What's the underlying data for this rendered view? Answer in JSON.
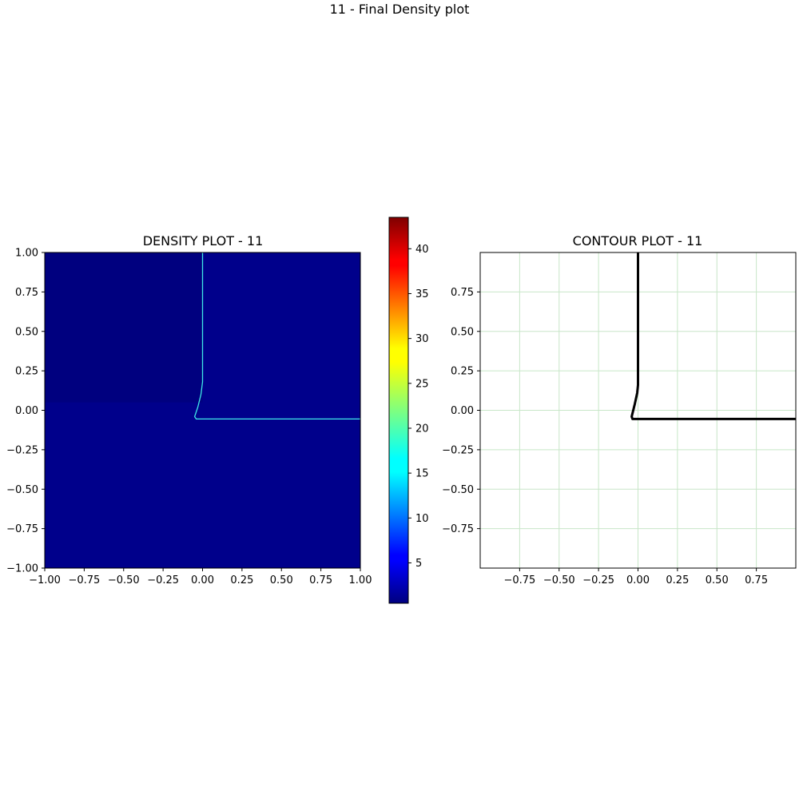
{
  "figure": {
    "suptitle": "11 - Final Density plot"
  },
  "chart_data": [
    {
      "type": "heatmap",
      "title": "DENSITY PLOT - 11",
      "xlabel": "",
      "ylabel": "",
      "xlim": [
        -1.0,
        1.0
      ],
      "ylim": [
        -1.0,
        1.0
      ],
      "xticks": [
        -1.0,
        -0.75,
        -0.5,
        -0.25,
        0.0,
        0.25,
        0.5,
        0.75,
        1.0
      ],
      "xtick_labels": [
        "−1.00",
        "−0.75",
        "−0.50",
        "−0.25",
        "0.00",
        "0.25",
        "0.50",
        "0.75",
        "1.00"
      ],
      "yticks": [
        -1.0,
        -0.75,
        -0.5,
        -0.25,
        0.0,
        0.25,
        0.5,
        0.75,
        1.0
      ],
      "ytick_labels": [
        "−1.00",
        "−0.75",
        "−0.50",
        "−0.25",
        "0.00",
        "0.25",
        "0.50",
        "0.75",
        "1.00"
      ],
      "grid": false,
      "colormap": "jet",
      "background_color": "#00008b",
      "upper_left_region_color": "#00007f",
      "interface_color": "#3fe8e8",
      "interface_line": {
        "x": [
          0.0,
          0.0,
          -0.01,
          -0.03,
          -0.05,
          -0.04,
          1.0
        ],
        "y": [
          1.0,
          0.18,
          0.1,
          0.02,
          -0.04,
          -0.055,
          -0.055
        ]
      },
      "colorbar": {
        "range": [
          0.5,
          43.5
        ],
        "ticks": [
          5,
          10,
          15,
          20,
          25,
          30,
          35,
          40
        ],
        "tick_labels": [
          "5",
          "10",
          "15",
          "20",
          "25",
          "30",
          "35",
          "40"
        ]
      }
    },
    {
      "type": "line",
      "title": "CONTOUR PLOT - 11",
      "xlabel": "",
      "ylabel": "",
      "xlim": [
        -1.0,
        1.0
      ],
      "ylim": [
        -1.0,
        1.0
      ],
      "xticks": [
        -0.75,
        -0.5,
        -0.25,
        0.0,
        0.25,
        0.5,
        0.75
      ],
      "xtick_labels": [
        "−0.75",
        "−0.50",
        "−0.25",
        "0.00",
        "0.25",
        "0.50",
        "0.75"
      ],
      "yticks": [
        -0.75,
        -0.5,
        -0.25,
        0.0,
        0.25,
        0.5,
        0.75
      ],
      "ytick_labels": [
        "−0.75",
        "−0.50",
        "−0.25",
        "0.00",
        "0.25",
        "0.50",
        "0.75"
      ],
      "grid": true,
      "grid_color": "#c8e6c8",
      "line_color": "#000000",
      "series": [
        {
          "x": [
            0.0,
            0.0,
            -0.005,
            -0.02,
            -0.04,
            -0.035,
            1.0
          ],
          "y": [
            1.0,
            0.16,
            0.11,
            0.04,
            -0.04,
            -0.055,
            -0.055
          ]
        }
      ]
    }
  ]
}
